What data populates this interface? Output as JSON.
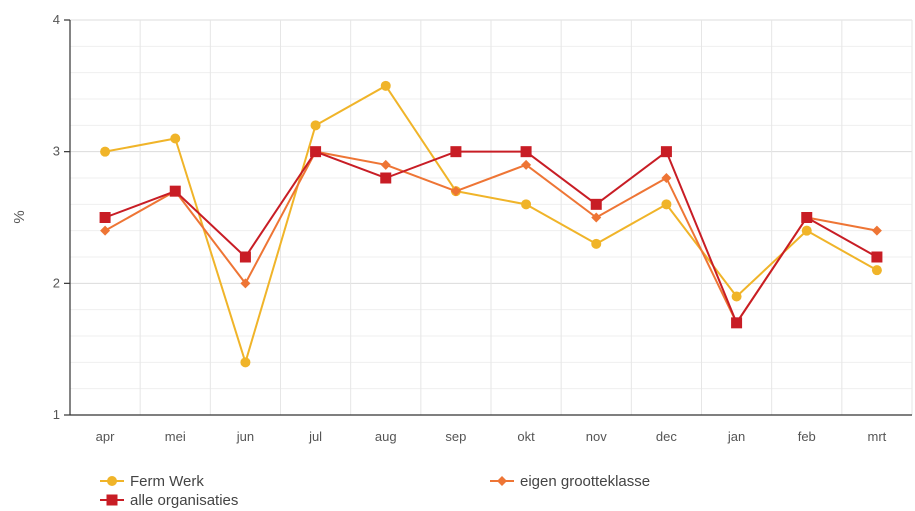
{
  "chart_data": {
    "type": "line",
    "categories": [
      "apr",
      "mei",
      "jun",
      "jul",
      "aug",
      "sep",
      "okt",
      "nov",
      "dec",
      "jan",
      "feb",
      "mrt"
    ],
    "ylabel": "%",
    "ylim": [
      1,
      4
    ],
    "yticks": [
      1,
      2,
      3,
      4
    ],
    "grid": true,
    "legend_position": "bottom",
    "series": [
      {
        "name": "Ferm Werk",
        "color": "#f0b429",
        "marker": "circle",
        "values": [
          3.0,
          3.1,
          1.4,
          3.2,
          3.5,
          2.7,
          2.6,
          2.3,
          2.6,
          1.9,
          2.4,
          2.1
        ]
      },
      {
        "name": "eigen grootteklasse",
        "color": "#ee7535",
        "marker": "diamond",
        "values": [
          2.4,
          2.7,
          2.0,
          3.0,
          2.9,
          2.7,
          2.9,
          2.5,
          2.8,
          1.7,
          2.5,
          2.4
        ]
      },
      {
        "name": "alle organisaties",
        "color": "#c81d25",
        "marker": "square",
        "values": [
          2.5,
          2.7,
          2.2,
          3.0,
          2.8,
          3.0,
          3.0,
          2.6,
          3.0,
          1.7,
          2.5,
          2.2
        ]
      }
    ]
  }
}
